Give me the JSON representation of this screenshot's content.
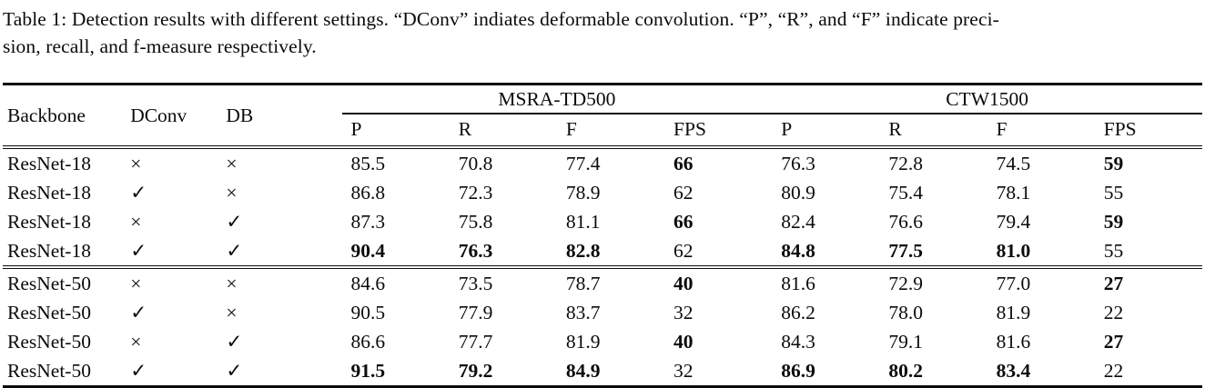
{
  "caption": {
    "line1": "Table 1: Detection results with different settings. “DConv” indiates deformable convolution. “P”, “R”, and “F” indicate preci-",
    "line2": "sion, recall, and f-measure respectively."
  },
  "table": {
    "headers": {
      "backbone": "Backbone",
      "dconv": "DConv",
      "db": "DB",
      "groups": [
        {
          "label": "MSRA-TD500",
          "sub": [
            "P",
            "R",
            "F",
            "FPS"
          ]
        },
        {
          "label": "CTW1500",
          "sub": [
            "P",
            "R",
            "F",
            "FPS"
          ]
        }
      ]
    },
    "row_groups": [
      [
        {
          "cells": [
            "ResNet-18",
            "×",
            "×",
            "85.5",
            "70.8",
            "77.4",
            "66",
            "76.3",
            "72.8",
            "74.5",
            "59"
          ],
          "bold": [
            0,
            0,
            0,
            0,
            0,
            0,
            1,
            0,
            0,
            0,
            1
          ]
        },
        {
          "cells": [
            "ResNet-18",
            "✓",
            "×",
            "86.8",
            "72.3",
            "78.9",
            "62",
            "80.9",
            "75.4",
            "78.1",
            "55"
          ],
          "bold": [
            0,
            0,
            0,
            0,
            0,
            0,
            0,
            0,
            0,
            0,
            0
          ]
        },
        {
          "cells": [
            "ResNet-18",
            "×",
            "✓",
            "87.3",
            "75.8",
            "81.1",
            "66",
            "82.4",
            "76.6",
            "79.4",
            "59"
          ],
          "bold": [
            0,
            0,
            0,
            0,
            0,
            0,
            1,
            0,
            0,
            0,
            1
          ]
        },
        {
          "cells": [
            "ResNet-18",
            "✓",
            "✓",
            "90.4",
            "76.3",
            "82.8",
            "62",
            "84.8",
            "77.5",
            "81.0",
            "55"
          ],
          "bold": [
            0,
            0,
            0,
            1,
            1,
            1,
            0,
            1,
            1,
            1,
            0
          ]
        }
      ],
      [
        {
          "cells": [
            "ResNet-50",
            "×",
            "×",
            "84.6",
            "73.5",
            "78.7",
            "40",
            "81.6",
            "72.9",
            "77.0",
            "27"
          ],
          "bold": [
            0,
            0,
            0,
            0,
            0,
            0,
            1,
            0,
            0,
            0,
            1
          ]
        },
        {
          "cells": [
            "ResNet-50",
            "✓",
            "×",
            "90.5",
            "77.9",
            "83.7",
            "32",
            "86.2",
            "78.0",
            "81.9",
            "22"
          ],
          "bold": [
            0,
            0,
            0,
            0,
            0,
            0,
            0,
            0,
            0,
            0,
            0
          ]
        },
        {
          "cells": [
            "ResNet-50",
            "×",
            "✓",
            "86.6",
            "77.7",
            "81.9",
            "40",
            "84.3",
            "79.1",
            "81.6",
            "27"
          ],
          "bold": [
            0,
            0,
            0,
            0,
            0,
            0,
            1,
            0,
            0,
            0,
            1
          ]
        },
        {
          "cells": [
            "ResNet-50",
            "✓",
            "✓",
            "91.5",
            "79.2",
            "84.9",
            "32",
            "86.9",
            "80.2",
            "83.4",
            "22"
          ],
          "bold": [
            0,
            0,
            0,
            1,
            1,
            1,
            0,
            1,
            1,
            1,
            0
          ]
        }
      ]
    ]
  }
}
